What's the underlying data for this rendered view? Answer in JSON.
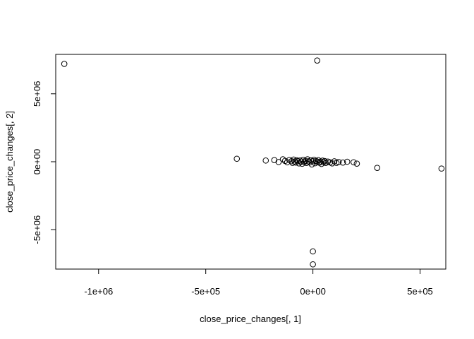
{
  "chart_data": {
    "type": "scatter",
    "title": "",
    "xlabel": "close_price_changes[, 1]",
    "ylabel": "close_price_changes[, 2]",
    "xlim": [
      -1200000,
      620000
    ],
    "ylim": [
      -7900000,
      7900000
    ],
    "x_ticks": [
      {
        "value": -1000000,
        "label": "-1e+06"
      },
      {
        "value": -500000,
        "label": "-5e+05"
      },
      {
        "value": 0,
        "label": "0e+00"
      },
      {
        "value": 500000,
        "label": "5e+05"
      }
    ],
    "y_ticks": [
      {
        "value": -5000000,
        "label": "-5e+06"
      },
      {
        "value": 0,
        "label": "0e+00"
      },
      {
        "value": 5000000,
        "label": "5e+06"
      }
    ],
    "grid": false,
    "marker": "open-circle",
    "marker_color": "#000000",
    "points": [
      [
        -1160000,
        7200000
      ],
      [
        20000,
        7450000
      ],
      [
        -355000,
        220000
      ],
      [
        -220000,
        90000
      ],
      [
        -180000,
        120000
      ],
      [
        -160000,
        -20000
      ],
      [
        -140000,
        180000
      ],
      [
        -130000,
        60000
      ],
      [
        -120000,
        -40000
      ],
      [
        -110000,
        130000
      ],
      [
        -100000,
        40000
      ],
      [
        -95000,
        -80000
      ],
      [
        -90000,
        160000
      ],
      [
        -85000,
        20000
      ],
      [
        -80000,
        -60000
      ],
      [
        -75000,
        110000
      ],
      [
        -70000,
        50000
      ],
      [
        -65000,
        -120000
      ],
      [
        -60000,
        90000
      ],
      [
        -55000,
        10000
      ],
      [
        -50000,
        -150000
      ],
      [
        -45000,
        140000
      ],
      [
        -40000,
        -30000
      ],
      [
        -35000,
        70000
      ],
      [
        -30000,
        -90000
      ],
      [
        -25000,
        180000
      ],
      [
        -20000,
        30000
      ],
      [
        -15000,
        -50000
      ],
      [
        -10000,
        100000
      ],
      [
        -5000,
        -200000
      ],
      [
        0,
        40000
      ],
      [
        5000,
        150000
      ],
      [
        10000,
        -110000
      ],
      [
        15000,
        60000
      ],
      [
        20000,
        -20000
      ],
      [
        25000,
        120000
      ],
      [
        30000,
        -70000
      ],
      [
        35000,
        20000
      ],
      [
        40000,
        -160000
      ],
      [
        45000,
        80000
      ],
      [
        50000,
        -30000
      ],
      [
        55000,
        50000
      ],
      [
        60000,
        -90000
      ],
      [
        70000,
        10000
      ],
      [
        80000,
        -50000
      ],
      [
        90000,
        -120000
      ],
      [
        100000,
        30000
      ],
      [
        110000,
        -80000
      ],
      [
        120000,
        -20000
      ],
      [
        140000,
        -60000
      ],
      [
        160000,
        0
      ],
      [
        190000,
        -40000
      ],
      [
        205000,
        -140000
      ],
      [
        300000,
        -450000
      ],
      [
        600000,
        -500000
      ],
      [
        0,
        -6600000
      ],
      [
        0,
        -7550000
      ]
    ]
  }
}
